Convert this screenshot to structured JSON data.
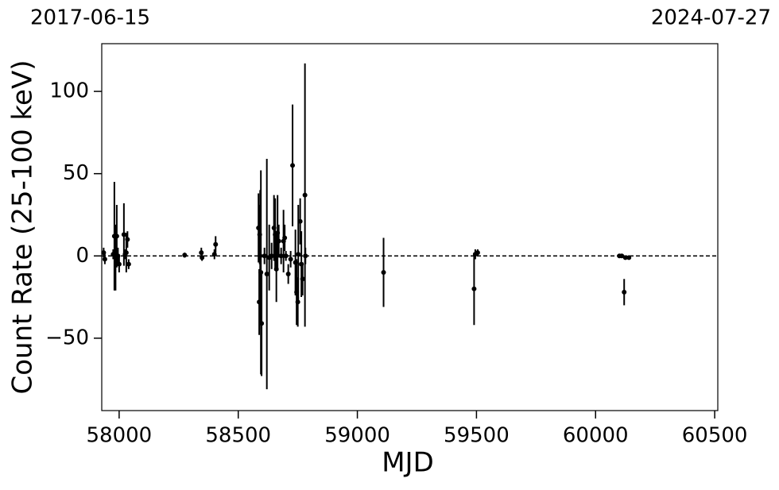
{
  "chart_data": {
    "type": "errorbar",
    "xlabel": "MJD",
    "ylabel": "Count Rate (25-100 keV)",
    "annotations": [
      "2017-06-15",
      "2024-07-27"
    ],
    "xlim": [
      57927,
      60513
    ],
    "ylim": [
      -94,
      129
    ],
    "xticks": [
      58000,
      58500,
      59000,
      59500,
      60000,
      60500
    ],
    "yticks": [
      {
        "value": -50,
        "label": "−50"
      },
      0,
      50,
      100
    ],
    "hline": 0,
    "color": "#000000",
    "x": [
      57935,
      57940,
      57975,
      57980,
      57985,
      57990,
      57995,
      58000,
      58020,
      58025,
      58030,
      58035,
      58040,
      58275,
      58345,
      58348,
      58400,
      58405,
      58585,
      58588,
      58590,
      58592,
      58595,
      58598,
      58610,
      58620,
      58630,
      58640,
      58650,
      58655,
      58660,
      58665,
      58670,
      58680,
      58690,
      58695,
      58700,
      58710,
      58720,
      58728,
      58740,
      58745,
      58750,
      58752,
      58760,
      58765,
      58770,
      58780,
      58782,
      59110,
      59490,
      59495,
      59505,
      60100,
      60110,
      60120,
      60125,
      60140
    ],
    "values": [
      2,
      -2,
      1,
      12,
      -1,
      12,
      0,
      -5,
      13,
      1,
      2,
      10,
      -5,
      0.5,
      2,
      -1,
      1,
      7,
      17,
      -28,
      13,
      0,
      -10,
      -41,
      0,
      -11,
      -1,
      0,
      17,
      13,
      -8,
      14,
      9,
      0,
      9,
      11,
      0,
      -11,
      -2,
      55,
      -4,
      -22,
      -28,
      1,
      21,
      -5,
      -14,
      37,
      0,
      -10,
      -20,
      1,
      2,
      0,
      0,
      -22,
      -1,
      -1
    ],
    "errors": [
      3,
      3,
      3,
      33,
      20,
      19,
      5,
      5,
      19,
      3,
      12,
      5,
      3,
      1.5,
      3,
      2,
      3,
      5,
      21,
      20,
      18,
      40,
      62,
      32,
      5,
      70,
      20,
      8,
      20,
      22,
      20,
      23,
      10,
      5,
      19,
      8,
      3,
      6,
      5,
      37,
      20,
      20,
      15,
      30,
      14,
      20,
      10,
      80,
      5,
      21,
      22,
      3,
      2,
      1,
      1,
      8,
      1,
      1
    ]
  }
}
